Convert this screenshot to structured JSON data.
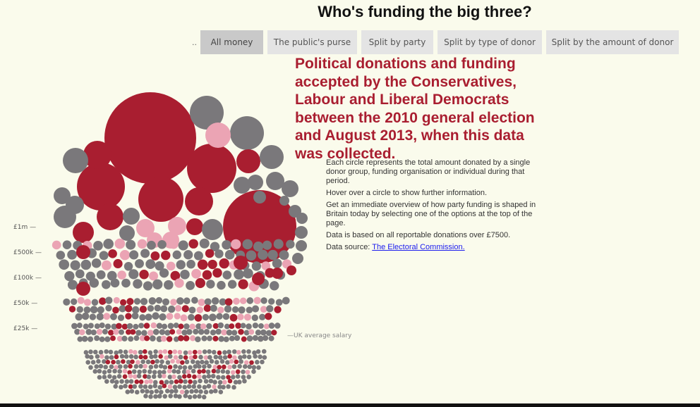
{
  "header": {
    "title": "Who's funding the big three?"
  },
  "tabs": {
    "ellipsis": "..",
    "items": [
      {
        "label": "All money",
        "active": true
      },
      {
        "label": "The public's purse",
        "active": false
      },
      {
        "label": "Split by party",
        "active": false
      },
      {
        "label": "Split by type of donor",
        "active": false
      },
      {
        "label": "Split by the amount of donor",
        "active": false
      }
    ]
  },
  "headline": "Political donations and funding accepted by the Conservatives, Labour and Liberal Democrats between the 2010 general election and August 2013, when this data was collected.",
  "description": {
    "p1": "Each circle represents the total amount donated by a single donor group, funding organisation or individual during that period.",
    "p2": "Hover over a circle to show further information.",
    "p3": "Get an immediate overview of how party funding is shaped in Britain today by selecting one of the options at the top of the page.",
    "p4": "Data is based on all reportable donations over £7500.",
    "p5_prefix": "Data source: ",
    "p5_link": "The Electoral Commission."
  },
  "chart_data": {
    "type": "bubble",
    "y_axis_ticks": [
      "£1m —",
      "£500k —",
      "£100k —",
      "£50k —",
      "£25k —"
    ],
    "annotation": "—UK average salary",
    "colors": {
      "dark_red": "#a91e30",
      "pink": "#eba4b4",
      "grey": "#7a787b",
      "background": "#fafbec"
    }
  }
}
